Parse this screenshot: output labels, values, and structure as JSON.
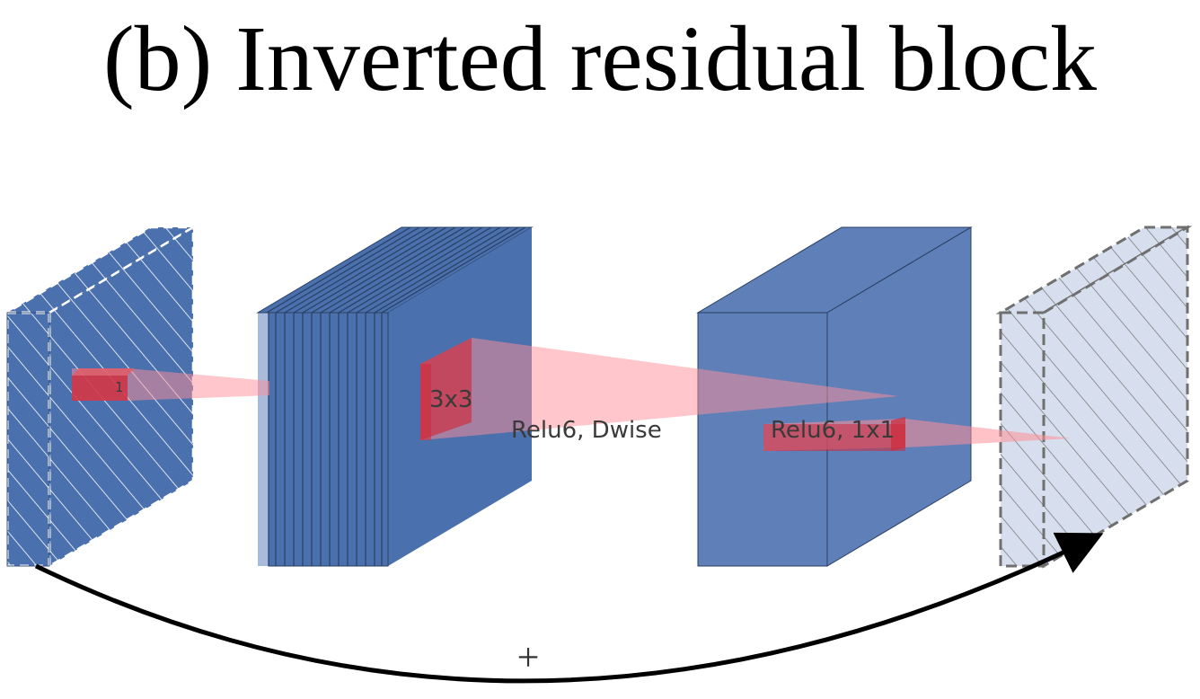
{
  "title": "(b) Inverted residual block",
  "labels": {
    "input_kernel": "1",
    "depthwise_kernel": "3x3",
    "depthwise_op": "Relu6, Dwise",
    "projection_op": "Relu6, 1x1",
    "residual_add": "+"
  },
  "colors": {
    "block_dark": "#4a70ad",
    "block_mid": "#5f7fb8",
    "block_light": "#d7dfee",
    "kernel": "#cf2a3a",
    "projection_cone": "#ff8f98"
  }
}
